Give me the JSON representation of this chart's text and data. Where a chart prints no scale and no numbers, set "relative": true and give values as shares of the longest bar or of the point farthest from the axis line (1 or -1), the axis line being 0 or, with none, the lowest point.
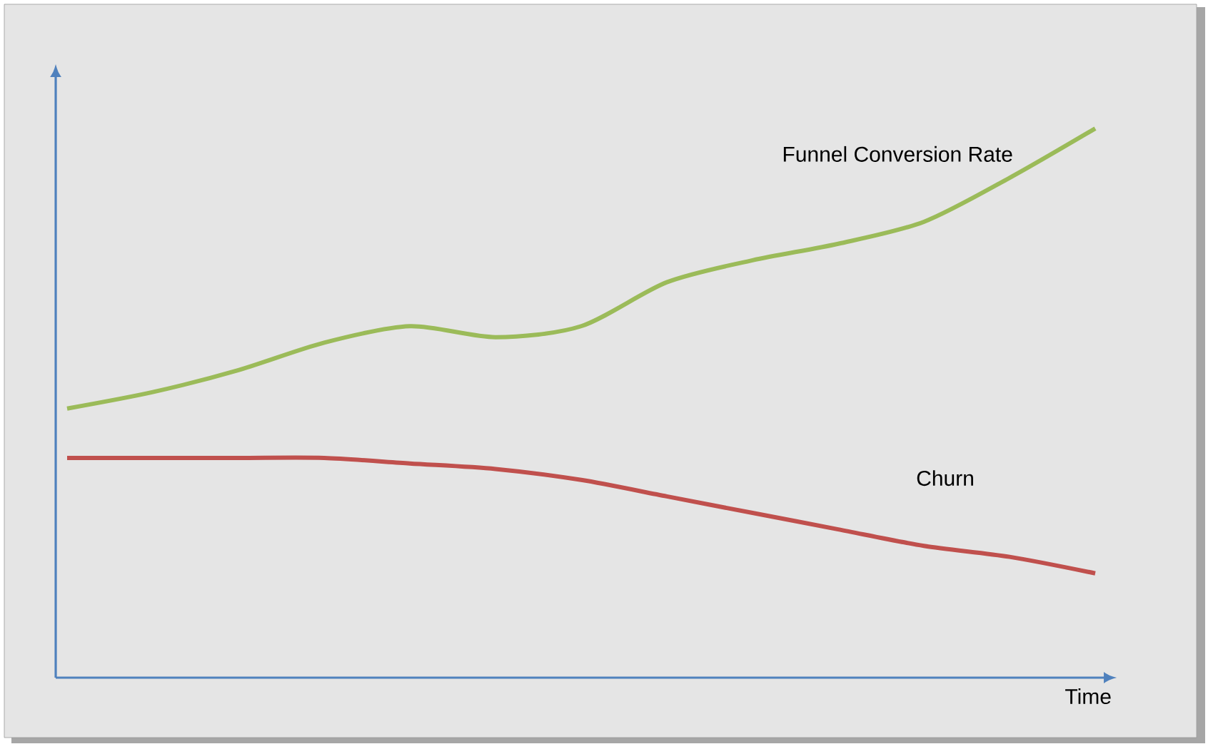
{
  "chart_data": {
    "type": "line",
    "relative": true,
    "xlabel": "Time",
    "legend": false,
    "marker": "none",
    "line_style": "solid",
    "categories": [
      null,
      null,
      null,
      null,
      null,
      null,
      null,
      null,
      null,
      null,
      null,
      null,
      null
    ],
    "series": [
      {
        "name": "Funnel Conversion Rate",
        "color": "#9bbb59",
        "values": [
          0.49,
          0.52,
          0.56,
          0.61,
          0.64,
          0.62,
          0.64,
          0.72,
          0.76,
          0.79,
          0.83,
          0.91,
          1.0
        ]
      },
      {
        "name": "Churn",
        "color": "#c0504d",
        "values": [
          0.4,
          0.4,
          0.4,
          0.4,
          0.39,
          0.38,
          0.36,
          0.33,
          0.3,
          0.27,
          0.24,
          0.22,
          0.19
        ]
      }
    ]
  }
}
